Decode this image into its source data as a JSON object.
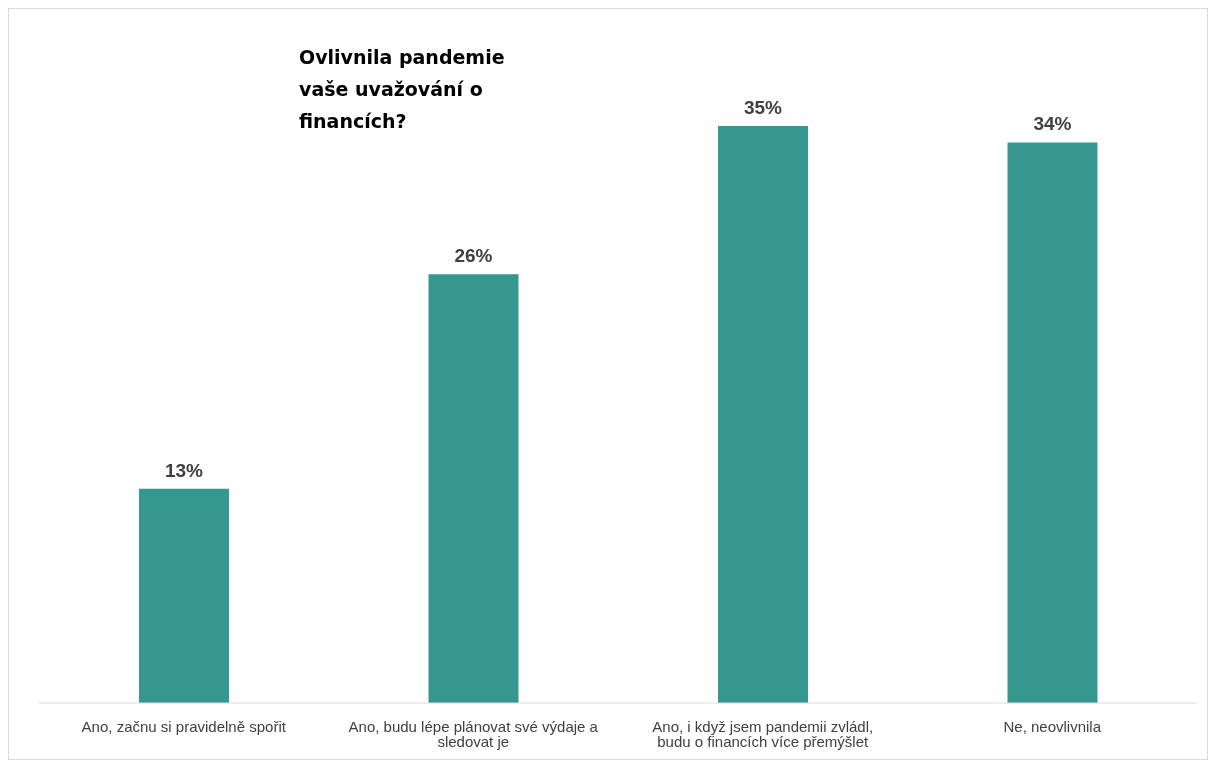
{
  "chart_data": {
    "type": "bar",
    "title": "Ovlivnila pandemie vaše uvažování o financích?",
    "categories": [
      "Ano, začnu si pravidelně spořit",
      "Ano, budu lépe plánovat své výdaje a sledovat je",
      "Ano, i když jsem pandemii zvládl, budu o financích více přemýšlet",
      "Ne, neovlivnila"
    ],
    "values": [
      13,
      26,
      35,
      34
    ],
    "value_labels": [
      "13%",
      "26%",
      "35%",
      "34%"
    ],
    "color": "#35978f"
  }
}
